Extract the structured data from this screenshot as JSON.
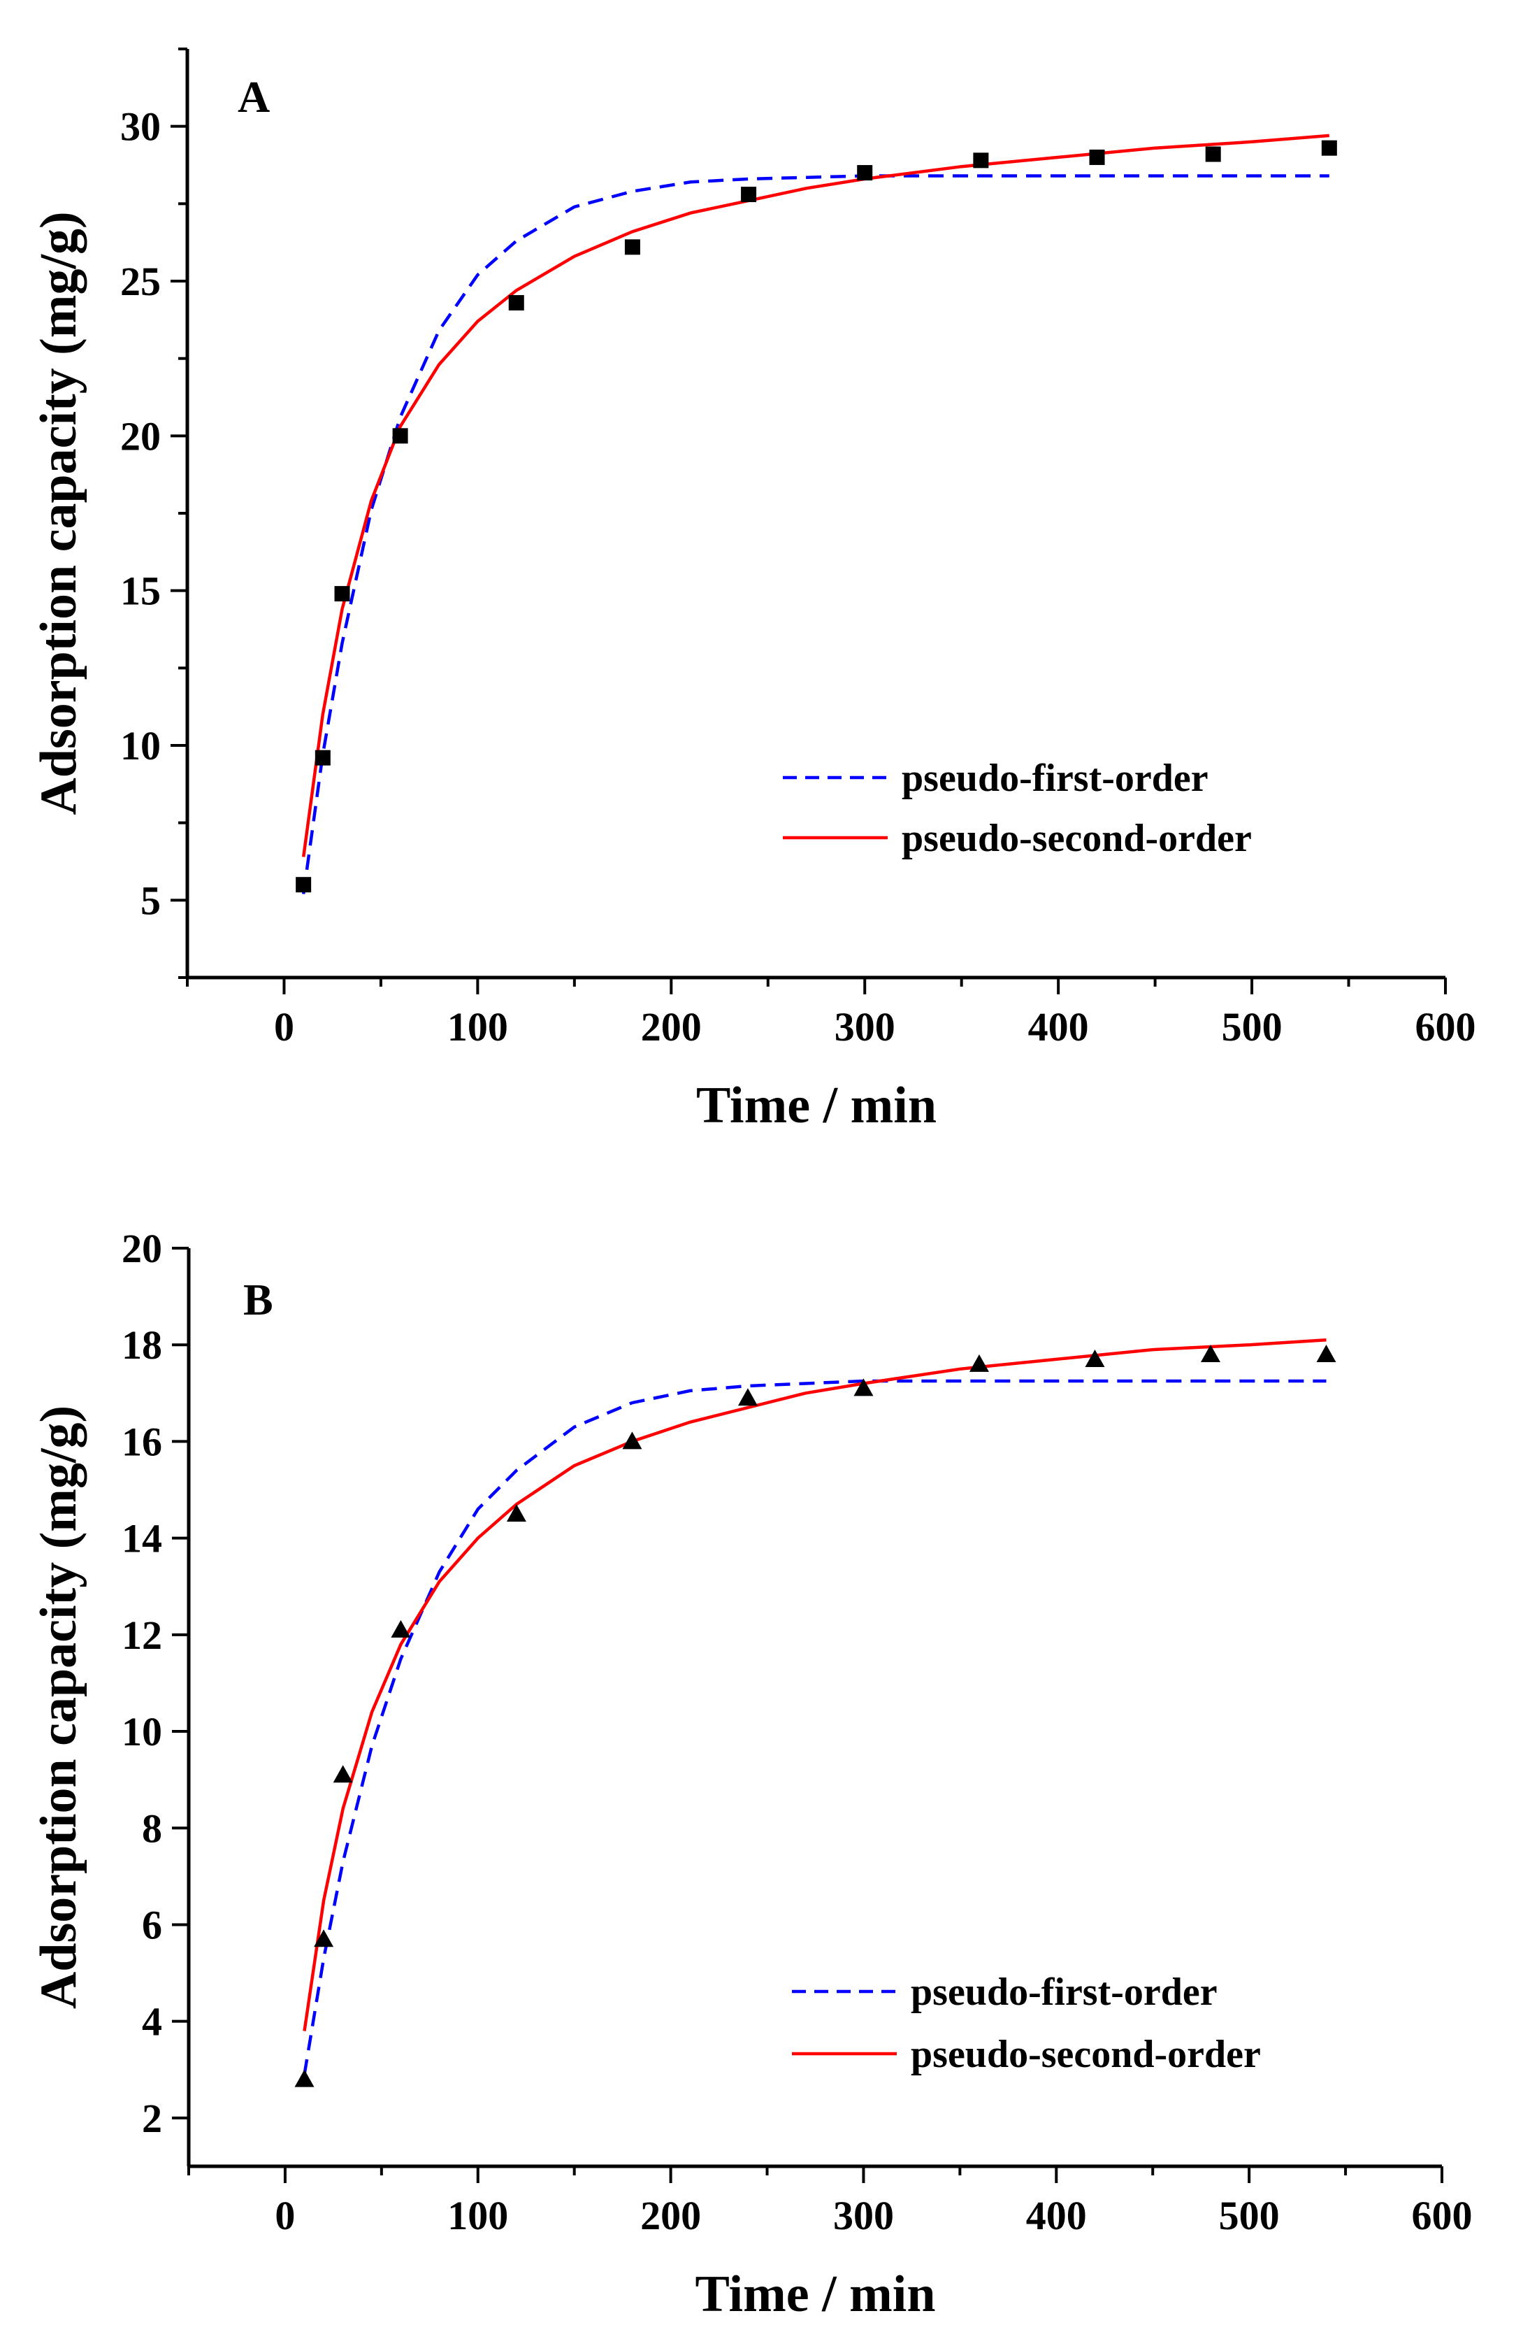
{
  "chart_data": [
    {
      "type": "scatter",
      "panel_label": "A",
      "xlabel": "Time / min",
      "ylabel": "Adsorption capacity (mg/g)",
      "xlim": [
        -50,
        600
      ],
      "ylim": [
        2.5,
        32.5
      ],
      "xticks": [
        0,
        100,
        200,
        300,
        400,
        500,
        600
      ],
      "yticks": [
        5,
        10,
        15,
        20,
        25,
        30
      ],
      "marker": "square",
      "grid": false,
      "legend_position": "lower-right",
      "x": [
        10,
        20,
        30,
        60,
        120,
        180,
        240,
        300,
        360,
        420,
        480,
        540
      ],
      "y": [
        5.5,
        9.6,
        14.9,
        20.0,
        24.3,
        26.1,
        27.8,
        28.5,
        28.9,
        29.0,
        29.1,
        29.3
      ],
      "series": [
        {
          "name": "pseudo-first-order",
          "style": "dashed",
          "color": "#0000ff",
          "x": [
            10,
            20,
            30,
            45,
            60,
            80,
            100,
            120,
            150,
            180,
            210,
            240,
            270,
            300,
            350,
            400,
            450,
            500,
            540
          ],
          "y": [
            5.2,
            9.7,
            13.3,
            17.6,
            20.6,
            23.4,
            25.2,
            26.3,
            27.4,
            27.9,
            28.2,
            28.3,
            28.35,
            28.4,
            28.4,
            28.4,
            28.4,
            28.4,
            28.4
          ]
        },
        {
          "name": "pseudo-second-order",
          "style": "solid",
          "color": "#ff0000",
          "x": [
            10,
            20,
            30,
            45,
            60,
            80,
            100,
            120,
            150,
            180,
            210,
            240,
            270,
            300,
            350,
            400,
            450,
            500,
            540
          ],
          "y": [
            6.4,
            11.0,
            14.4,
            17.9,
            20.3,
            22.3,
            23.7,
            24.7,
            25.8,
            26.6,
            27.2,
            27.6,
            28.0,
            28.3,
            28.7,
            29.0,
            29.3,
            29.5,
            29.7
          ]
        }
      ]
    },
    {
      "type": "scatter",
      "panel_label": "B",
      "xlabel": "Time / min",
      "ylabel": "Adsorption capacity (mg/g)",
      "xlim": [
        -50,
        600
      ],
      "ylim": [
        1,
        20
      ],
      "xticks": [
        0,
        100,
        200,
        300,
        400,
        500,
        600
      ],
      "yticks": [
        2,
        4,
        6,
        8,
        10,
        12,
        14,
        16,
        18,
        20
      ],
      "marker": "triangle",
      "grid": false,
      "legend_position": "lower-right",
      "x": [
        10,
        20,
        30,
        60,
        120,
        180,
        240,
        300,
        360,
        420,
        480,
        540
      ],
      "y": [
        2.8,
        5.7,
        9.1,
        12.1,
        14.5,
        16.0,
        16.9,
        17.1,
        17.6,
        17.7,
        17.8,
        17.8
      ],
      "series": [
        {
          "name": "pseudo-first-order",
          "style": "dashed",
          "color": "#0000ff",
          "x": [
            10,
            20,
            30,
            45,
            60,
            80,
            100,
            120,
            150,
            180,
            210,
            240,
            270,
            300,
            350,
            400,
            450,
            500,
            540
          ],
          "y": [
            2.9,
            5.3,
            7.3,
            9.7,
            11.5,
            13.3,
            14.6,
            15.4,
            16.3,
            16.8,
            17.05,
            17.15,
            17.2,
            17.25,
            17.25,
            17.25,
            17.25,
            17.25,
            17.25
          ]
        },
        {
          "name": "pseudo-second-order",
          "style": "solid",
          "color": "#ff0000",
          "x": [
            10,
            20,
            30,
            45,
            60,
            80,
            100,
            120,
            150,
            180,
            210,
            240,
            270,
            300,
            350,
            400,
            450,
            500,
            540
          ],
          "y": [
            3.8,
            6.5,
            8.4,
            10.4,
            11.8,
            13.1,
            14.0,
            14.7,
            15.5,
            16.0,
            16.4,
            16.7,
            17.0,
            17.2,
            17.5,
            17.7,
            17.9,
            18.0,
            18.1
          ]
        }
      ]
    }
  ]
}
